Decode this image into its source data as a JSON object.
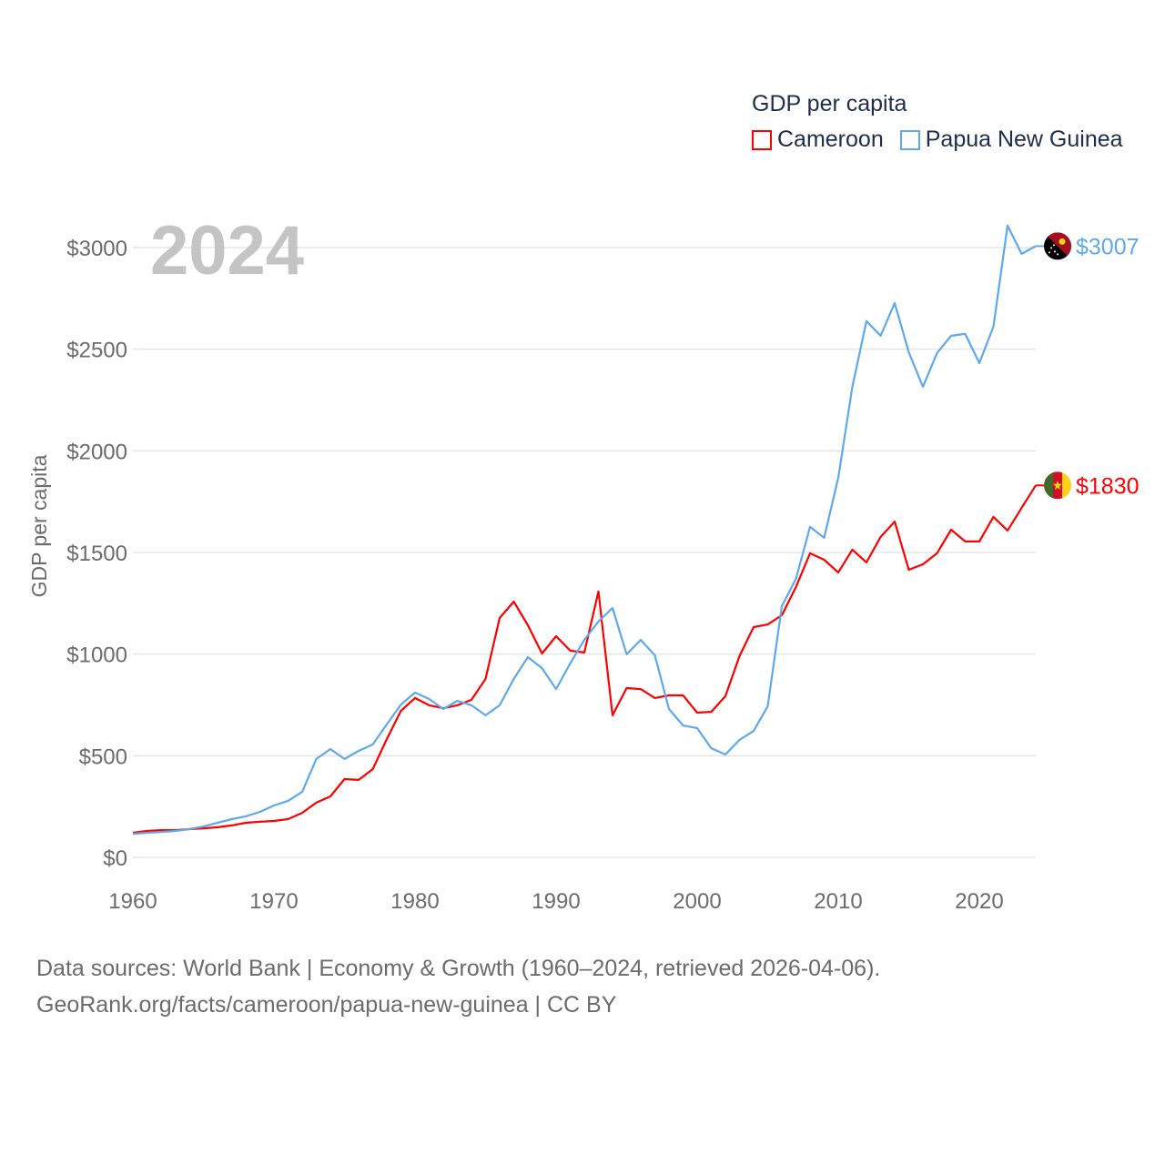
{
  "chart_data": {
    "type": "line",
    "title": "GDP per capita",
    "ylabel": "GDP per capita",
    "xlabel": "",
    "year_label": "2024",
    "ylim": [
      0,
      3000
    ],
    "xlim": [
      1960,
      2024
    ],
    "yticks": [
      0,
      500,
      1000,
      1500,
      2000,
      2500,
      3000
    ],
    "ytick_labels": [
      "$0",
      "$500",
      "$1000",
      "$1500",
      "$2000",
      "$2500",
      "$3000"
    ],
    "xticks": [
      1960,
      1970,
      1980,
      1990,
      2000,
      2010,
      2020
    ],
    "xtick_labels": [
      "1960",
      "1970",
      "1980",
      "1990",
      "2000",
      "2010",
      "2020"
    ],
    "grid": true,
    "legend_position": "top-right",
    "x_start": 1960,
    "series": [
      {
        "name": "Cameroon",
        "color": "#ff0000",
        "end_label": "$1830",
        "flag": "cameroon-flag",
        "values": [
          121,
          130,
          134,
          134,
          139,
          143,
          148,
          157,
          170,
          175,
          179,
          188,
          219,
          269,
          300,
          385,
          381,
          434,
          582,
          721,
          784,
          748,
          734,
          748,
          775,
          878,
          1178,
          1258,
          1142,
          1003,
          1088,
          1017,
          1008,
          1308,
          699,
          833,
          828,
          784,
          797,
          797,
          712,
          716,
          793,
          990,
          1133,
          1146,
          1191,
          1330,
          1496,
          1464,
          1402,
          1514,
          1451,
          1576,
          1652,
          1415,
          1442,
          1496,
          1612,
          1554,
          1554,
          1675,
          1608,
          1720,
          1830
        ]
      },
      {
        "name": "Papua New Guinea",
        "color": "#5ea8ec",
        "end_label": "$3007",
        "flag": "papua-new-guinea-flag",
        "values": [
          116,
          121,
          125,
          130,
          139,
          152,
          170,
          188,
          202,
          224,
          255,
          278,
          322,
          484,
          533,
          484,
          524,
          555,
          654,
          752,
          811,
          779,
          730,
          770,
          748,
          699,
          748,
          878,
          985,
          931,
          828,
          954,
          1070,
          1160,
          1227,
          999,
          1070,
          994,
          730,
          649,
          636,
          537,
          506,
          578,
          622,
          743,
          1236,
          1370,
          1626,
          1572,
          1867,
          2315,
          2638,
          2566,
          2727,
          2485,
          2315,
          2481,
          2566,
          2575,
          2432,
          2611,
          3108,
          2969,
          3007
        ]
      }
    ]
  },
  "footer": {
    "line1": "Data sources: World Bank | Economy & Growth (1960–2024, retrieved 2026-04-06).",
    "line2": "GeoRank.org/facts/cameroon/papua-new-guinea | CC BY"
  }
}
